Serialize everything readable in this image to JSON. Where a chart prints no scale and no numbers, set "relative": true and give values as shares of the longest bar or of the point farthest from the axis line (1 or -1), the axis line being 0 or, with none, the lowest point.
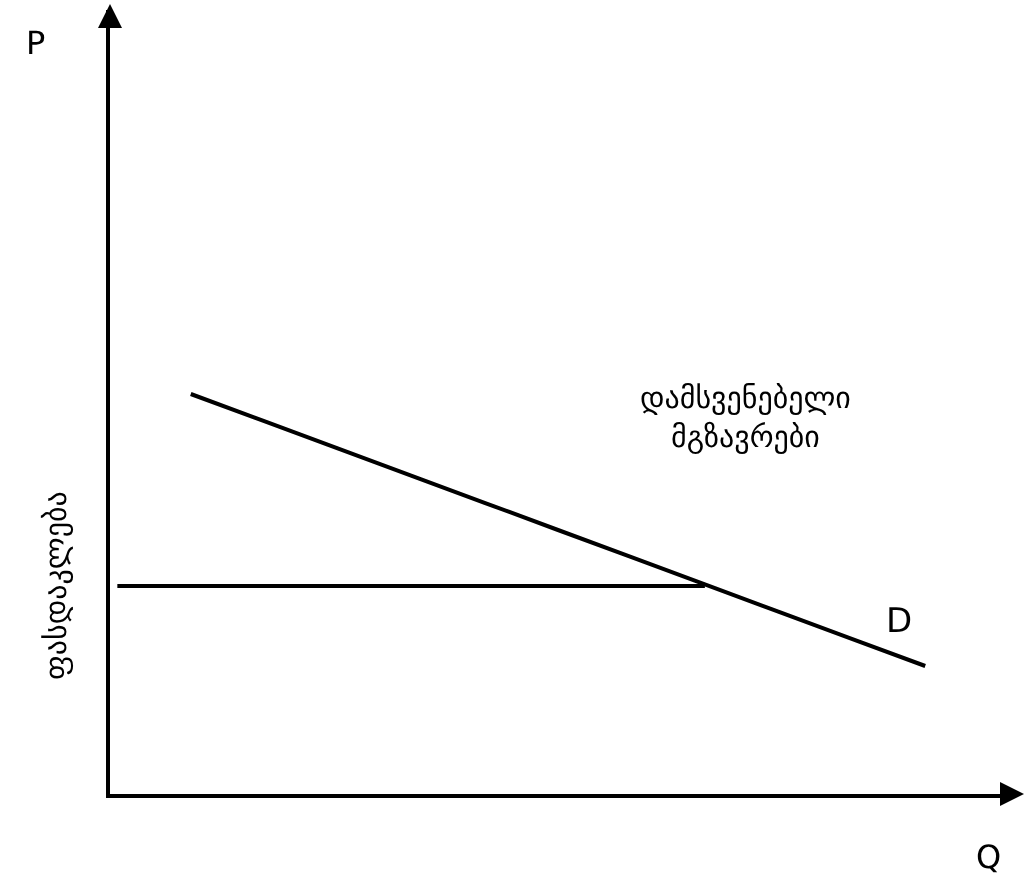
{
  "chart_data": {
    "type": "line",
    "relative": true,
    "xlabel": "Q",
    "categories": [
      null,
      null,
      null,
      null,
      null,
      null,
      null,
      null,
      null,
      null,
      null,
      null
    ],
    "series": [
      {
        "name": "D",
        "color": "#000000",
        "values": [
          null,
          1,
          0.932,
          0.864,
          0.796,
          0.728,
          0.66,
          0.592,
          0.524,
          0.456,
          0.388,
          0.32
        ]
      },
      {
        "name": "ფასდაკლება",
        "color": "#000000",
        "values": [
          0.52,
          0.52,
          0.52,
          0.52,
          0.52,
          0.52,
          0.52,
          0.52,
          0.52,
          null,
          null,
          null
        ]
      }
    ],
    "annotations": [
      "დამსვენებელი\nმგზავრები",
      "P"
    ],
    "legend": false,
    "grid": false,
    "marker": "none",
    "line_style": "solid"
  }
}
